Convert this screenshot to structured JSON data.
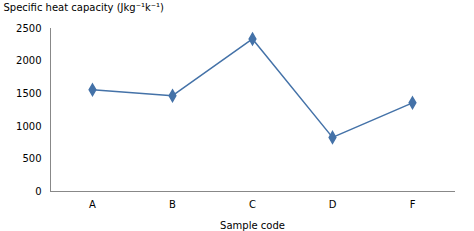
{
  "chart_data": {
    "type": "line",
    "xlabel": "Sample code",
    "ylabel": "Specific heat capacity (Jkg⁻¹k⁻¹)",
    "categories": [
      "A",
      "B",
      "C",
      "D",
      "F"
    ],
    "values": [
      1560,
      1470,
      2340,
      830,
      1360
    ],
    "color": "#4472a8",
    "marker": "diamond",
    "ylim": [
      0,
      2500
    ],
    "yticks": [
      0,
      500,
      1000,
      1500,
      2000,
      2500
    ],
    "grid": false
  }
}
